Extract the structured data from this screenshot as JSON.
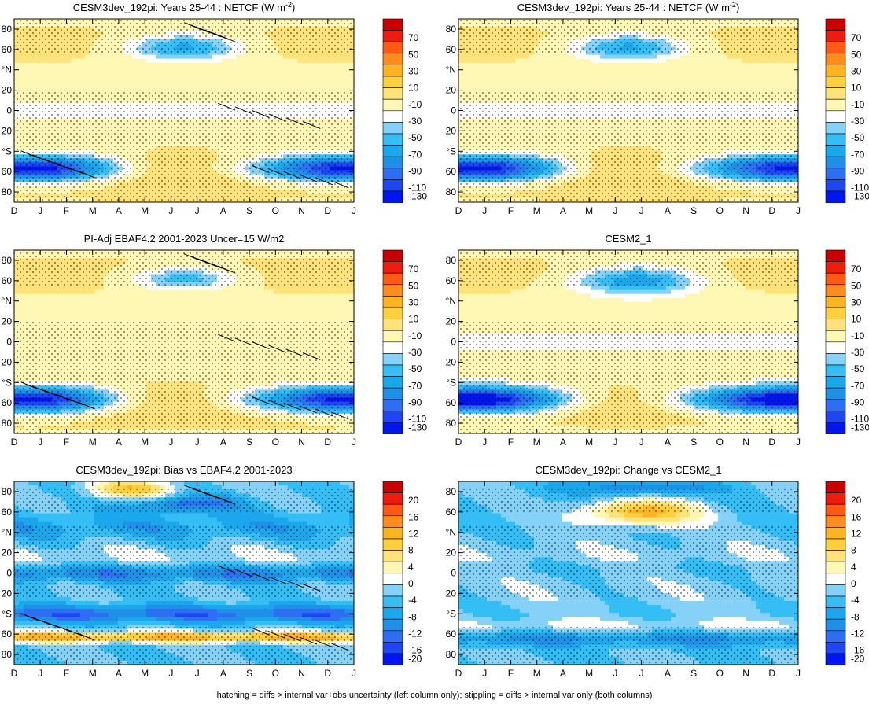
{
  "figure": {
    "caption": "hatching = diffs > internal var+obs uncertainty (left column only); stippling = diffs > internal var only (both columns)"
  },
  "colors": {
    "abs": [
      "#0016f0",
      "#1e46f5",
      "#2e6ef2",
      "#1f8fe8",
      "#1aa7ec",
      "#35bdf5",
      "#86d1f7",
      "#ffffff",
      "#fff7b3",
      "#ffe37a",
      "#ffcf3d",
      "#ffb41f",
      "#ff8c1c",
      "#ff5a14",
      "#ed1c0c",
      "#c80000"
    ],
    "diff": [
      "#0016f0",
      "#1e46f5",
      "#2e6ef2",
      "#1f8fe8",
      "#1aa7ec",
      "#35bdf5",
      "#86d1f7",
      "#ffffff",
      "#fff7b3",
      "#ffe37a",
      "#ffcf3d",
      "#ffb41f",
      "#ff8c1c",
      "#ff5a14",
      "#ed1c0c",
      "#c80000"
    ]
  },
  "chart_data": [
    {
      "type": "heatmap",
      "title": "CESM3dev_192pi: Years 25-44 : NETCF (W m",
      "title_sup": "-2",
      "title_tail": ")",
      "field": "model",
      "hatch": true,
      "stipple": true,
      "x_months": [
        "D",
        "J",
        "F",
        "M",
        "A",
        "M",
        "J",
        "J",
        "A",
        "S",
        "O",
        "N",
        "D",
        "J"
      ],
      "y_ticks": [
        "80",
        "60",
        "°N",
        "20",
        "0",
        "20",
        "°S",
        "60",
        "80"
      ],
      "ylim": [
        -90,
        90
      ],
      "colorbar_labels": [
        "70",
        "50",
        "30",
        "10",
        "-10",
        "-30",
        "-50",
        "-70",
        "-90",
        "-110",
        "-130"
      ],
      "colorbar_levels": [
        -130,
        -110,
        -90,
        -70,
        -50,
        -30,
        -10,
        10,
        30,
        50,
        70
      ]
    },
    {
      "type": "heatmap",
      "title": "CESM3dev_192pi: Years 25-44 : NETCF (W m",
      "title_sup": "-2",
      "title_tail": ")",
      "field": "model",
      "hatch": false,
      "stipple": true,
      "x_months": [
        "D",
        "J",
        "F",
        "M",
        "A",
        "M",
        "J",
        "J",
        "A",
        "S",
        "O",
        "N",
        "D",
        "J"
      ],
      "y_ticks": [
        "80",
        "60",
        "°N",
        "20",
        "0",
        "20",
        "°S",
        "60",
        "80"
      ],
      "ylim": [
        -90,
        90
      ],
      "colorbar_labels": [
        "70",
        "50",
        "30",
        "10",
        "-10",
        "-30",
        "-50",
        "-70",
        "-90",
        "-110",
        "-130"
      ],
      "colorbar_levels": [
        -130,
        -110,
        -90,
        -70,
        -50,
        -30,
        -10,
        10,
        30,
        50,
        70
      ]
    },
    {
      "type": "heatmap",
      "title": "PI-Adj EBAF4.2 2001-2023 Uncer=15 W/m2",
      "field": "obs",
      "hatch": true,
      "stipple": true,
      "x_months": [
        "D",
        "J",
        "F",
        "M",
        "A",
        "M",
        "J",
        "J",
        "A",
        "S",
        "O",
        "N",
        "D",
        "J"
      ],
      "y_ticks": [
        "80",
        "60",
        "°N",
        "20",
        "0",
        "20",
        "°S",
        "60",
        "80"
      ],
      "ylim": [
        -90,
        90
      ],
      "colorbar_labels": [
        "70",
        "50",
        "30",
        "10",
        "-10",
        "-30",
        "-50",
        "-70",
        "-90",
        "-110",
        "-130"
      ],
      "colorbar_levels": [
        -130,
        -110,
        -90,
        -70,
        -50,
        -30,
        -10,
        10,
        30,
        50,
        70
      ]
    },
    {
      "type": "heatmap",
      "title": "CESM2_1",
      "field": "cesm2",
      "hatch": false,
      "stipple": true,
      "x_months": [
        "D",
        "J",
        "F",
        "M",
        "A",
        "M",
        "J",
        "J",
        "A",
        "S",
        "O",
        "N",
        "D",
        "J"
      ],
      "y_ticks": [
        "80",
        "60",
        "°N",
        "20",
        "0",
        "20",
        "°S",
        "60",
        "80"
      ],
      "ylim": [
        -90,
        90
      ],
      "colorbar_labels": [
        "70",
        "50",
        "30",
        "10",
        "-10",
        "-30",
        "-50",
        "-70",
        "-90",
        "-110",
        "-130"
      ],
      "colorbar_levels": [
        -130,
        -110,
        -90,
        -70,
        -50,
        -30,
        -10,
        10,
        30,
        50,
        70
      ]
    },
    {
      "type": "heatmap",
      "title": "CESM3dev_192pi: Bias vs EBAF4.2 2001-2023",
      "field": "bias",
      "hatch": true,
      "stipple": true,
      "x_months": [
        "D",
        "J",
        "F",
        "M",
        "A",
        "M",
        "J",
        "J",
        "A",
        "S",
        "O",
        "N",
        "D",
        "J"
      ],
      "y_ticks": [
        "80",
        "60",
        "°N",
        "20",
        "0",
        "20",
        "°S",
        "60",
        "80"
      ],
      "ylim": [
        -90,
        90
      ],
      "colorbar_labels": [
        "20",
        "16",
        "12",
        "8",
        "4",
        "0",
        "-4",
        "-8",
        "-12",
        "-16",
        "-20"
      ],
      "colorbar_levels": [
        -20,
        -16,
        -12,
        -8,
        -4,
        0,
        4,
        8,
        12,
        16,
        20
      ]
    },
    {
      "type": "heatmap",
      "title": "CESM3dev_192pi: Change vs CESM2_1",
      "field": "change",
      "hatch": false,
      "stipple": true,
      "x_months": [
        "D",
        "J",
        "F",
        "M",
        "A",
        "M",
        "J",
        "J",
        "A",
        "S",
        "O",
        "N",
        "D",
        "J"
      ],
      "y_ticks": [
        "80",
        "60",
        "°N",
        "20",
        "0",
        "20",
        "°S",
        "60",
        "80"
      ],
      "ylim": [
        -90,
        90
      ],
      "colorbar_labels": [
        "20",
        "16",
        "12",
        "8",
        "4",
        "0",
        "-4",
        "-8",
        "-12",
        "-16",
        "-20"
      ],
      "colorbar_levels": [
        -20,
        -16,
        -12,
        -8,
        -4,
        0,
        4,
        8,
        12,
        16,
        20
      ]
    }
  ]
}
